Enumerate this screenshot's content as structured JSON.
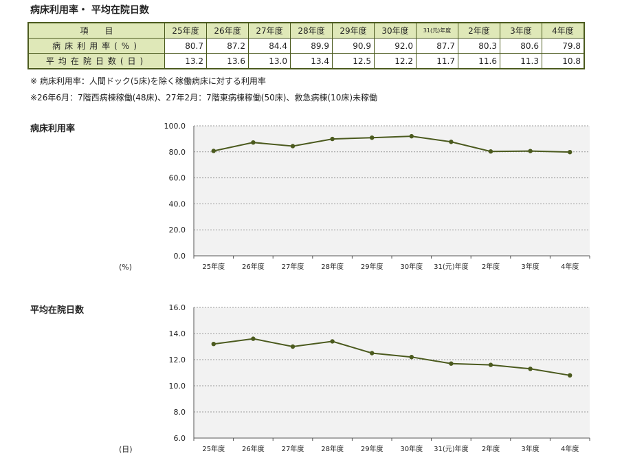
{
  "page": {
    "title": "病床利用率・ 平均在院日数"
  },
  "table": {
    "header_label": "項　　目",
    "columns": [
      "25年度",
      "26年度",
      "27年度",
      "28年度",
      "29年度",
      "30年度",
      "31(元)年度",
      "2年度",
      "3年度",
      "4年度"
    ],
    "rows": [
      {
        "label": "病床利用率(%)",
        "values": [
          "80.7",
          "87.2",
          "84.4",
          "89.9",
          "90.9",
          "92.0",
          "87.7",
          "80.3",
          "80.6",
          "79.8"
        ]
      },
      {
        "label": "平均在院日数(日)",
        "values": [
          "13.2",
          "13.6",
          "13.0",
          "13.4",
          "12.5",
          "12.2",
          "11.7",
          "11.6",
          "11.3",
          "10.8"
        ]
      }
    ]
  },
  "notes": [
    "※ 病床利用率：人間ドック(5床)を除く稼働病床に対する利用率",
    "※26年6月：7階西病棟稼働(48床)、27年2月：7階東病棟稼働(50床)、救急病棟(10床)未稼働"
  ],
  "colors": {
    "line": "#4b5a1e",
    "header_bg": "#dfe8b8",
    "plot_bg": "#f2f2f2"
  },
  "chart_data": [
    {
      "type": "line",
      "title": "病床利用率",
      "ylabel": "(%)",
      "categories": [
        "25年度",
        "26年度",
        "27年度",
        "28年度",
        "29年度",
        "30年度",
        "31(元)年度",
        "2年度",
        "3年度",
        "4年度"
      ],
      "values": [
        80.7,
        87.2,
        84.4,
        89.9,
        90.9,
        92.0,
        87.7,
        80.3,
        80.6,
        79.8
      ],
      "ylim": [
        0,
        100
      ],
      "yticks": [
        "100.0",
        "80.0",
        "60.0",
        "40.0",
        "20.0",
        "0.0"
      ],
      "grid": true
    },
    {
      "type": "line",
      "title": "平均在院日数",
      "ylabel": "(日)",
      "categories": [
        "25年度",
        "26年度",
        "27年度",
        "28年度",
        "29年度",
        "30年度",
        "31(元)年度",
        "2年度",
        "3年度",
        "4年度"
      ],
      "values": [
        13.2,
        13.6,
        13.0,
        13.4,
        12.5,
        12.2,
        11.7,
        11.6,
        11.3,
        10.8
      ],
      "ylim": [
        6,
        16
      ],
      "yticks": [
        "16.0",
        "14.0",
        "12.0",
        "10.0",
        "8.0",
        "6.0"
      ],
      "grid": true
    }
  ]
}
